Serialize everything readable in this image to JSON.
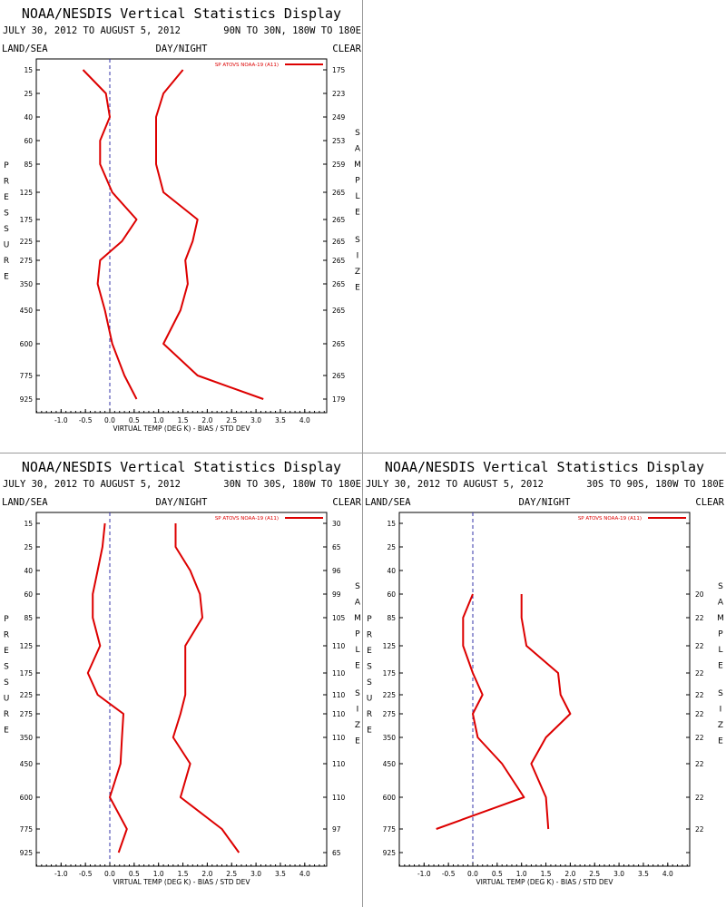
{
  "colors": {
    "series": "#dd0000",
    "axis": "#000000",
    "zero_line": "#3333aa",
    "divider": "#9a9a9a"
  },
  "chart_data": [
    {
      "type": "line",
      "title": "NOAA/NESDIS Vertical Statistics Display",
      "date_range": "JULY 30, 2012 TO AUGUST 5, 2012",
      "region": "90N TO 30N, 180W TO 180E",
      "top_left_label": "LAND/SEA",
      "top_center_label": "DAY/NIGHT",
      "top_right_label": "CLEAR",
      "xlabel": "VIRTUAL TEMP (DEG K) - BIAS / STD DEV",
      "ylabel": "PRESSURE",
      "y2label": "SAMPLE SIZE",
      "legend": "SP ATOVS NOAA-19 (A11)",
      "xlim": [
        -1.5,
        4.5
      ],
      "xticks": [
        "-1.0",
        "-0.5",
        "0.0",
        "0.5",
        "1.0",
        "1.5",
        "2.0",
        "2.5",
        "3.0",
        "3.5",
        "4.0"
      ],
      "pressure_levels": [
        "15",
        "25",
        "40",
        "60",
        "85",
        "125",
        "175",
        "225",
        "275",
        "350",
        "450",
        "600",
        "775",
        "925"
      ],
      "sample_size": [
        "175",
        "223",
        "249",
        "253",
        "259",
        "265",
        "265",
        "265",
        "265",
        "265",
        "265",
        "265",
        "265",
        "179"
      ],
      "series": [
        {
          "name": "bias",
          "values": [
            -0.55,
            -0.08,
            0.0,
            -0.2,
            -0.2,
            0.05,
            0.55,
            0.25,
            -0.2,
            -0.25,
            -0.1,
            0.05,
            0.3,
            0.55
          ]
        },
        {
          "name": "std dev",
          "values": [
            1.5,
            1.1,
            0.95,
            0.95,
            0.95,
            1.1,
            1.8,
            1.7,
            1.55,
            1.6,
            1.45,
            1.1,
            1.8,
            3.15
          ]
        }
      ]
    },
    {
      "type": "line",
      "title": "NOAA/NESDIS Vertical Statistics Display",
      "date_range": "JULY 30, 2012 TO AUGUST 5, 2012",
      "region": "30N TO 30S, 180W TO 180E",
      "top_left_label": "LAND/SEA",
      "top_center_label": "DAY/NIGHT",
      "top_right_label": "CLEAR",
      "xlabel": "VIRTUAL TEMP (DEG K) - BIAS / STD DEV",
      "ylabel": "PRESSURE",
      "y2label": "SAMPLE SIZE",
      "legend": "SP ATOVS NOAA-19 (A11)",
      "xlim": [
        -1.5,
        4.5
      ],
      "xticks": [
        "-1.0",
        "-0.5",
        "0.0",
        "0.5",
        "1.0",
        "1.5",
        "2.0",
        "2.5",
        "3.0",
        "3.5",
        "4.0"
      ],
      "pressure_levels": [
        "15",
        "25",
        "40",
        "60",
        "85",
        "125",
        "175",
        "225",
        "275",
        "350",
        "450",
        "600",
        "775",
        "925"
      ],
      "sample_size": [
        "30",
        "65",
        "96",
        "99",
        "105",
        "110",
        "110",
        "110",
        "110",
        "110",
        "110",
        "110",
        "97",
        "65"
      ],
      "series": [
        {
          "name": "bias",
          "values": [
            -0.1,
            -0.15,
            -0.25,
            -0.35,
            -0.35,
            -0.2,
            -0.45,
            -0.25,
            0.28,
            0.25,
            0.22,
            0.0,
            0.35,
            0.18
          ]
        },
        {
          "name": "std dev",
          "values": [
            1.35,
            1.35,
            1.65,
            1.85,
            1.9,
            1.55,
            1.55,
            1.55,
            1.45,
            1.3,
            1.65,
            1.45,
            2.3,
            2.65
          ]
        }
      ]
    },
    {
      "type": "line",
      "title": "NOAA/NESDIS Vertical Statistics Display",
      "date_range": "JULY 30, 2012 TO AUGUST 5, 2012",
      "region": "30S TO 90S, 180W TO 180E",
      "top_left_label": "LAND/SEA",
      "top_center_label": "DAY/NIGHT",
      "top_right_label": "CLEAR",
      "xlabel": "VIRTUAL TEMP (DEG K) - BIAS / STD DEV",
      "ylabel": "PRESSURE",
      "y2label": "SAMPLE SIZE",
      "legend": "SP ATOVS NOAA-19 (A11)",
      "xlim": [
        -1.5,
        4.5
      ],
      "xticks": [
        "-1.0",
        "-0.5",
        "0.0",
        "0.5",
        "1.0",
        "1.5",
        "2.0",
        "2.5",
        "3.0",
        "3.5",
        "4.0"
      ],
      "pressure_levels": [
        "15",
        "25",
        "40",
        "60",
        "85",
        "125",
        "175",
        "225",
        "275",
        "350",
        "450",
        "600",
        "775",
        "925"
      ],
      "sample_size": [
        "",
        "",
        "",
        "20",
        "22",
        "22",
        "22",
        "22",
        "22",
        "22",
        "22",
        "22",
        "22",
        ""
      ],
      "series": [
        {
          "name": "bias",
          "values": [
            null,
            null,
            null,
            0.0,
            -0.2,
            -0.2,
            0.0,
            0.2,
            0.0,
            0.1,
            0.6,
            1.05,
            -0.75,
            null
          ]
        },
        {
          "name": "std dev",
          "values": [
            null,
            null,
            null,
            1.0,
            1.0,
            1.1,
            1.75,
            1.8,
            2.0,
            1.5,
            1.2,
            1.5,
            1.55,
            null
          ]
        }
      ]
    }
  ]
}
